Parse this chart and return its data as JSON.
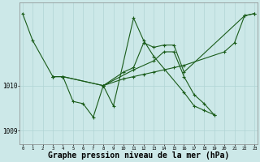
{
  "bg_color": "#cce8e8",
  "grid_color": "#b0d4d4",
  "line_color": "#1a5c1a",
  "xlabel": "Graphe pression niveau de la mer (hPa)",
  "xlabel_fontsize": 7,
  "ylim": [
    1008.7,
    1011.85
  ],
  "xlim": [
    -0.3,
    23.3
  ],
  "series": [
    {
      "x": [
        0,
        1,
        3,
        4,
        8,
        10,
        11,
        12,
        13,
        14,
        15,
        16,
        20,
        21,
        22,
        23
      ],
      "y": [
        1011.6,
        1011.0,
        1010.2,
        1010.2,
        1010.0,
        1010.15,
        1010.2,
        1010.25,
        1010.3,
        1010.35,
        1010.4,
        1010.45,
        1010.75,
        1010.95,
        1011.55,
        1011.6
      ]
    },
    {
      "x": [
        3,
        4,
        5,
        6,
        7,
        8,
        9,
        11,
        12,
        13,
        16,
        17,
        18,
        19
      ],
      "y": [
        1010.2,
        1010.2,
        1009.65,
        1009.6,
        1009.3,
        1010.0,
        1009.55,
        1011.5,
        1011.0,
        1010.65,
        1009.85,
        1009.55,
        1009.45,
        1009.35
      ]
    },
    {
      "x": [
        3,
        4,
        8,
        11,
        13,
        14,
        15,
        16,
        17,
        18,
        19
      ],
      "y": [
        1010.2,
        1010.2,
        1010.0,
        1010.35,
        1010.55,
        1010.75,
        1010.75,
        1010.2,
        1009.8,
        1009.6,
        1009.35
      ]
    },
    {
      "x": [
        8,
        10,
        11,
        12,
        13,
        14,
        15,
        16,
        22,
        23
      ],
      "y": [
        1010.0,
        1010.3,
        1010.4,
        1010.95,
        1010.85,
        1010.9,
        1010.9,
        1010.3,
        1011.55,
        1011.6
      ]
    }
  ],
  "yticks": [
    1009.0,
    1010.0
  ],
  "xtick_labels": [
    "0",
    "1",
    "2",
    "3",
    "4",
    "5",
    "6",
    "7",
    "8",
    "9",
    "10",
    "11",
    "12",
    "13",
    "14",
    "15",
    "16",
    "17",
    "18",
    "19",
    "20",
    "21",
    "22",
    "23"
  ]
}
